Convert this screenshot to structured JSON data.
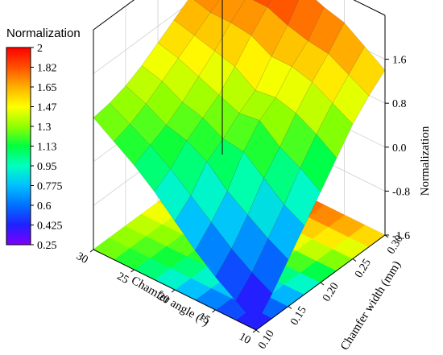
{
  "chart_data": {
    "type": "surface3d",
    "colorbar": {
      "title": "Normalization",
      "ticks": [
        "2",
        "1.82",
        "1.65",
        "1.47",
        "1.3",
        "1.13",
        "0.95",
        "0.775",
        "0.6",
        "0.425",
        "0.25"
      ],
      "range": [
        0.25,
        2.0
      ],
      "colors": [
        "#7f00ff",
        "#2020ff",
        "#0070ff",
        "#00c0ff",
        "#00ffc0",
        "#00ff40",
        "#90ff00",
        "#ffff00",
        "#ffb000",
        "#ff5000",
        "#ff0000"
      ]
    },
    "x_axis": {
      "label": "Chamfer angle (°)",
      "ticks": [
        "30",
        "25",
        "20",
        "15",
        "10"
      ],
      "range": [
        10,
        30
      ]
    },
    "y_axis": {
      "label": "Chamfer width (mm)",
      "ticks": [
        "0.10",
        "0.15",
        "0.20",
        "0.25",
        "0.30"
      ],
      "range": [
        0.1,
        0.3
      ]
    },
    "z_axis": {
      "label": "Normalization",
      "ticks": [
        "-1.6",
        "-0.8",
        "0.0",
        "0.8",
        "1.6"
      ],
      "range": [
        -1.6,
        2.4
      ]
    },
    "x": [
      10,
      12.5,
      15,
      17.5,
      20,
      22.5,
      25,
      27.5,
      30
    ],
    "y": [
      0.1,
      0.125,
      0.15,
      0.175,
      0.2,
      0.225,
      0.25,
      0.275,
      0.3
    ],
    "z": [
      [
        -1.5,
        -1.25,
        -1.0,
        -0.7,
        -0.35,
        0.0,
        0.3,
        0.55,
        0.8
      ],
      [
        -1.15,
        -0.95,
        -0.7,
        -0.4,
        -0.1,
        0.2,
        0.45,
        0.65,
        0.85
      ],
      [
        -0.75,
        -0.55,
        -0.3,
        -0.05,
        0.3,
        0.5,
        0.6,
        0.8,
        0.95
      ],
      [
        -0.35,
        -0.15,
        0.15,
        0.45,
        0.5,
        0.7,
        0.8,
        1.0,
        1.1
      ],
      [
        0.05,
        0.3,
        0.5,
        0.8,
        0.75,
        0.9,
        1.05,
        1.2,
        1.3
      ],
      [
        0.45,
        0.7,
        0.9,
        1.0,
        0.95,
        1.2,
        1.3,
        1.4,
        1.5
      ],
      [
        0.85,
        1.05,
        1.25,
        1.35,
        1.35,
        1.55,
        1.6,
        1.6,
        1.7
      ],
      [
        1.15,
        1.35,
        1.55,
        1.6,
        1.7,
        1.85,
        1.85,
        1.8,
        1.85
      ],
      [
        1.4,
        1.65,
        1.9,
        2.0,
        2.15,
        2.2,
        2.1,
        2.0,
        2.0
      ]
    ]
  }
}
